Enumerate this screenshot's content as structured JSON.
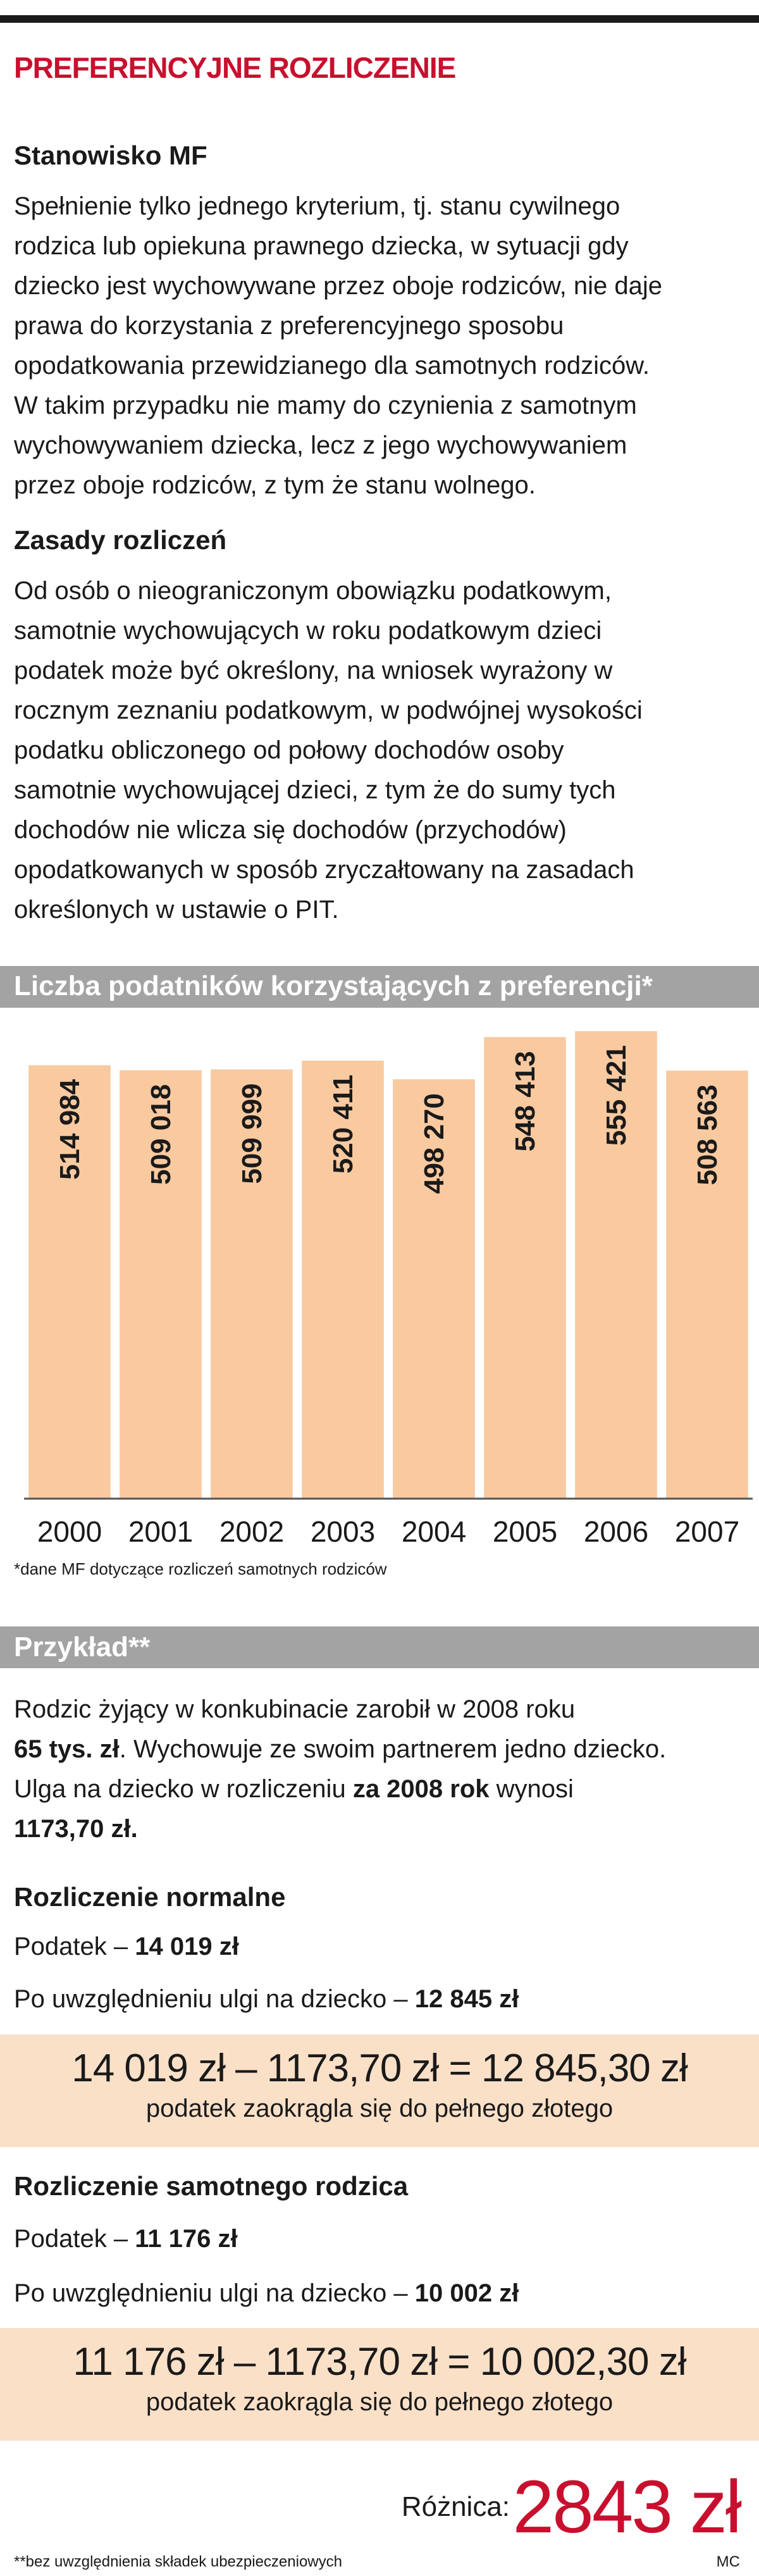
{
  "header": {
    "title": "PREFERENCYJNE ROZLICZENIE"
  },
  "sections": [
    {
      "heading": "Stanowisko MF",
      "lines": [
        "Spełnienie tylko jednego kryterium, tj. stanu cywilnego",
        "rodzica lub opiekuna prawnego dziecka, w sytuacji gdy",
        "dziecko jest wychowywane przez oboje rodziców, nie daje",
        "prawa do korzystania z preferencyjnego sposobu",
        "opodatkowania przewidzianego dla samotnych rodziców.",
        "W takim przypadku nie mamy do czynienia z samotnym",
        "wychowywaniem dziecka, lecz z jego wychowywaniem",
        "przez oboje rodziców, z tym że stanu wolnego."
      ]
    },
    {
      "heading": "Zasady rozliczeń",
      "lines": [
        "Od osób o nieograniczonym obowiązku podatkowym,",
        "samotnie wychowujących w roku podatkowym dzieci",
        "podatek może być określony, na wniosek wyrażony w",
        "rocznym zeznaniu podatkowym, w podwójnej wysokości",
        "podatku obliczonego od połowy dochodów osoby",
        "samotnie wychowującej dzieci, z tym że do sumy tych",
        "dochodów nie wlicza się dochodów (przychodów)",
        "opodatkowanych w sposób zryczałtowany na zasadach",
        "określonych w ustawie o PIT."
      ]
    }
  ],
  "chart_data": {
    "type": "bar",
    "title": "Liczba podatników korzystających z preferencji*",
    "categories": [
      "2000",
      "2001",
      "2002",
      "2003",
      "2004",
      "2005",
      "2006",
      "2007"
    ],
    "values": [
      514984,
      509018,
      509999,
      520411,
      498270,
      548413,
      555421,
      508563
    ],
    "value_labels": [
      "514 984",
      "509 018",
      "509 999",
      "520 411",
      "498 270",
      "548 413",
      "555 421",
      "508 563"
    ],
    "color": "#f9c9a0",
    "ylim": [
      0,
      575000
    ],
    "footnote": "*dane MF dotyczące rozliczeń samotnych rodziców"
  },
  "example": {
    "title": "Przykład**",
    "intro": [
      [
        "Rodzic żyjący w konkubinacie zarobił w 2008 roku"
      ],
      [
        "65 tys. zł",
        ". Wychowuje ze swoim partnerem jedno dziecko."
      ],
      [
        "Ulga na dziecko w rozliczeniu ",
        "za 2008 rok",
        " wynosi"
      ],
      [
        "1173,70 zł."
      ]
    ],
    "cases": [
      {
        "heading": "Rozliczenie normalne",
        "tax": [
          "Podatek – ",
          "14 019 zł"
        ],
        "after_relief": [
          "Po uwzględnieniu ulgi na dziecko – ",
          "12 845 zł"
        ],
        "formula": "14 019 zł – 1173,70 zł = 12 845,30 zł",
        "note": "podatek zaokrągla się do pełnego złotego"
      },
      {
        "heading": "Rozliczenie samotnego rodzica",
        "tax": [
          "Podatek – ",
          "11 176 zł"
        ],
        "after_relief": [
          "Po uwzględnieniu ulgi na dziecko – ",
          "10 002 zł"
        ],
        "formula": "11 176 zł – 1173,70 zł = 10 002,30 zł",
        "note": "podatek zaokrągla się do pełnego złotego"
      }
    ],
    "difference_label": "Różnica:",
    "difference_value": "2843 zł"
  },
  "footer": {
    "note": "**bez uwzględnienia składek ubezpieczeniowych",
    "credit": "MC"
  }
}
